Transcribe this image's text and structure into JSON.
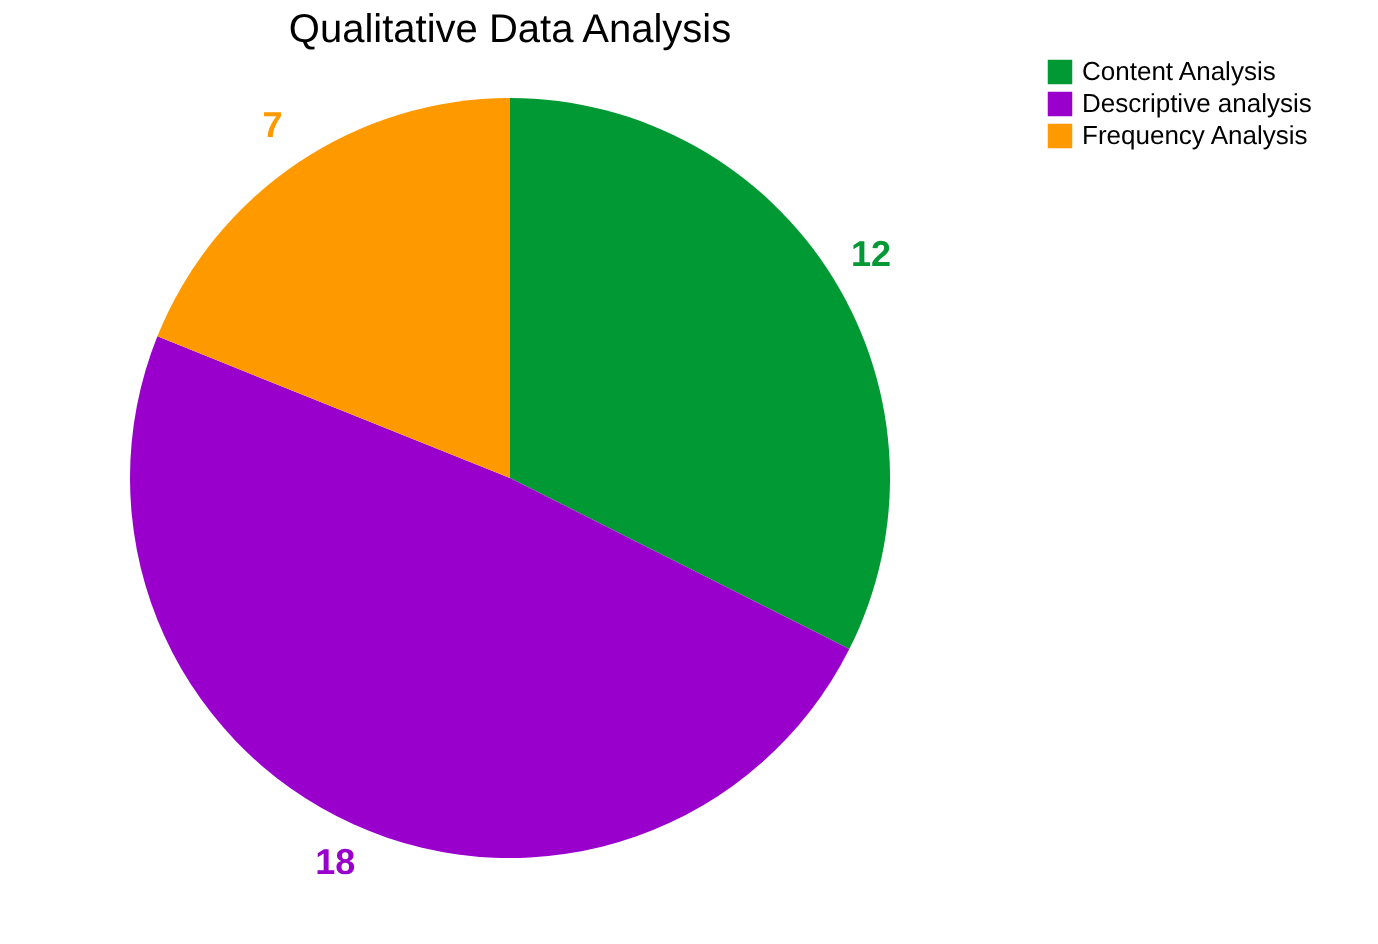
{
  "chart_data": {
    "type": "pie",
    "title": "Qualitative Data Analysis",
    "categories": [
      "Content Analysis",
      "Descriptive analysis",
      "Frequency Analysis"
    ],
    "values": [
      12,
      18,
      7
    ],
    "colors": [
      "#009933",
      "#9900cc",
      "#ff9900"
    ],
    "data_labels": true,
    "legend": "right"
  }
}
